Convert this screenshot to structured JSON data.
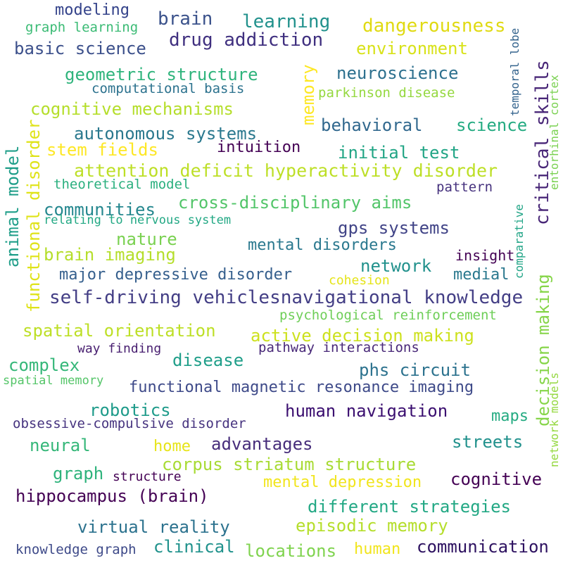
{
  "words": [
    {
      "text": "modeling",
      "color": "#33428a"
    },
    {
      "text": "graph learning",
      "color": "#3bbb75"
    },
    {
      "text": "brain",
      "color": "#3b528b"
    },
    {
      "text": "learning",
      "color": "#21918c"
    },
    {
      "text": "dangerousness",
      "color": "#e0da12"
    },
    {
      "text": "temporal lobe",
      "color": "#33638d"
    },
    {
      "text": "basic science",
      "color": "#3c508b"
    },
    {
      "text": "drug addiction",
      "color": "#3f2f7f"
    },
    {
      "text": "environment",
      "color": "#d8e219"
    },
    {
      "text": "critical skills",
      "color": "#482677"
    },
    {
      "text": "entorhinal cortex",
      "color": "#7ad151"
    },
    {
      "text": "memory",
      "color": "#fde725"
    },
    {
      "text": "geometric structure",
      "color": "#2fb47c"
    },
    {
      "text": "neuroscience",
      "color": "#2d708e"
    },
    {
      "text": "computational basis",
      "color": "#2c728e"
    },
    {
      "text": "parkinson disease",
      "color": "#95d840"
    },
    {
      "text": "cognitive mechanisms",
      "color": "#b5de2b"
    },
    {
      "text": "functional disorder",
      "color": "#dfe318"
    },
    {
      "text": "behavioral",
      "color": "#31688e"
    },
    {
      "text": "science",
      "color": "#25ab82"
    },
    {
      "text": "autonomous systems",
      "color": "#2a788e"
    },
    {
      "text": "animal model",
      "color": "#1f9e89"
    },
    {
      "text": "stem fields",
      "color": "#fde725"
    },
    {
      "text": "intuition",
      "color": "#440154"
    },
    {
      "text": "initial test",
      "color": "#21a585"
    },
    {
      "text": "attention deficit hyperactivity disorder",
      "color": "#bddf26"
    },
    {
      "text": "theoretical model",
      "color": "#2bb07f"
    },
    {
      "text": "pattern",
      "color": "#46327e"
    },
    {
      "text": "comparative",
      "color": "#20a486"
    },
    {
      "text": "communities",
      "color": "#24878e"
    },
    {
      "text": "cross-disciplinary aims",
      "color": "#52c569"
    },
    {
      "text": "relating to nervous system",
      "color": "#22a884"
    },
    {
      "text": "gps systems",
      "color": "#414487"
    },
    {
      "text": "nature",
      "color": "#7ad151"
    },
    {
      "text": "mental disorders",
      "color": "#2a788e"
    },
    {
      "text": "brain imaging",
      "color": "#b5de2b"
    },
    {
      "text": "insight",
      "color": "#440154"
    },
    {
      "text": "network",
      "color": "#21918c"
    },
    {
      "text": "decision making",
      "color": "#86d549"
    },
    {
      "text": "major depressive disorder",
      "color": "#355f8d"
    },
    {
      "text": "medial",
      "color": "#2a788e"
    },
    {
      "text": "cohesion",
      "color": "#e5e419"
    },
    {
      "text": "self-driving vehiclesnavigational knowledge",
      "color": "#433e85"
    },
    {
      "text": "psychological reinforcement",
      "color": "#6ece58"
    },
    {
      "text": "spatial orientation",
      "color": "#bddf26"
    },
    {
      "text": "active decision making",
      "color": "#cde11d"
    },
    {
      "text": "way finding",
      "color": "#481f70"
    },
    {
      "text": "pathway interactions",
      "color": "#482878"
    },
    {
      "text": "complex",
      "color": "#35b779"
    },
    {
      "text": "disease",
      "color": "#1f9e89"
    },
    {
      "text": "phs circuit",
      "color": "#2c728e"
    },
    {
      "text": "spatial memory",
      "color": "#54c568"
    },
    {
      "text": "functional magnetic resonance imaging",
      "color": "#3e4a89"
    },
    {
      "text": "network models",
      "color": "#95d840"
    },
    {
      "text": "robotics",
      "color": "#1e9b8a"
    },
    {
      "text": "human navigation",
      "color": "#3b0f70"
    },
    {
      "text": "maps",
      "color": "#25ab82"
    },
    {
      "text": "obsessive-compulsive disorder",
      "color": "#46337f"
    },
    {
      "text": "neural",
      "color": "#35b779"
    },
    {
      "text": "home",
      "color": "#e7e419"
    },
    {
      "text": "advantages",
      "color": "#472d7b"
    },
    {
      "text": "streets",
      "color": "#21918c"
    },
    {
      "text": "graph",
      "color": "#2eb37c"
    },
    {
      "text": "corpus striatum structure",
      "color": "#a8db34"
    },
    {
      "text": "structure",
      "color": "#440154"
    },
    {
      "text": "cognitive",
      "color": "#440154"
    },
    {
      "text": "mental depression",
      "color": "#f1e51d"
    },
    {
      "text": "hippocampus (brain)",
      "color": "#440154"
    },
    {
      "text": "different strategies",
      "color": "#22a884"
    },
    {
      "text": "virtual reality",
      "color": "#2c728e"
    },
    {
      "text": "episodic memory",
      "color": "#b5de2b"
    },
    {
      "text": "knowledge graph",
      "color": "#3e4a89"
    },
    {
      "text": "clinical",
      "color": "#20928c"
    },
    {
      "text": "locations",
      "color": "#7fd34e"
    },
    {
      "text": "human",
      "color": "#f1e51d"
    },
    {
      "text": "communication",
      "color": "#2d1160"
    }
  ]
}
